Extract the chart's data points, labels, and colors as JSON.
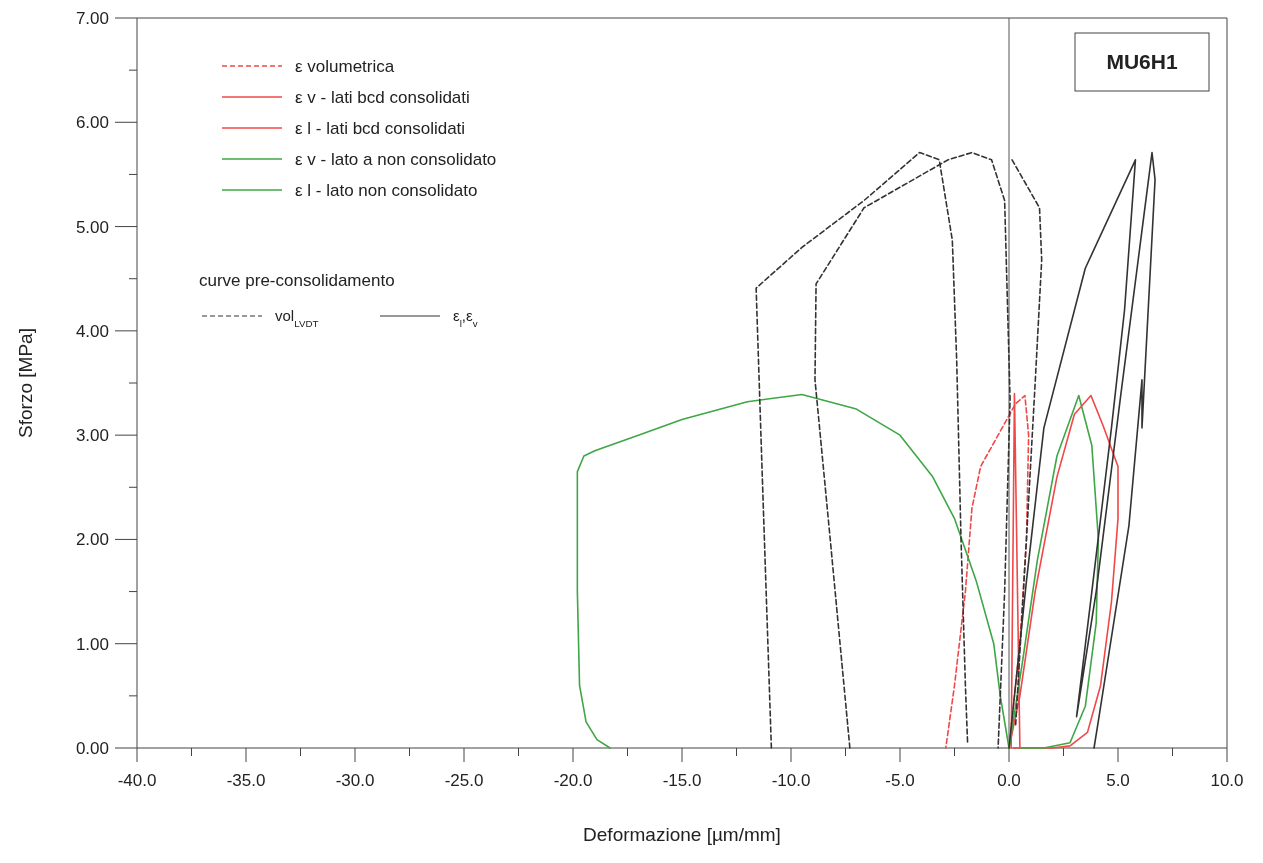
{
  "chart_data": {
    "type": "line",
    "xlabel": "Deformazione [µm/mm]",
    "ylabel": "Sforzo [MPa]",
    "legend_title": "curve pre-consolidamento",
    "annotations": [
      "MU6H1"
    ],
    "xlim": [
      -40,
      10
    ],
    "ylim": [
      0,
      7
    ],
    "xticks": [
      {
        "value": -40,
        "label": "-40.0"
      },
      {
        "value": -37.5,
        "label": null
      },
      {
        "value": -35,
        "label": "-35.0"
      },
      {
        "value": -32.5,
        "label": null
      },
      {
        "value": -30,
        "label": "-30.0"
      },
      {
        "value": -27.5,
        "label": null
      },
      {
        "value": -25,
        "label": "-25.0"
      },
      {
        "value": -22.5,
        "label": null
      },
      {
        "value": -20,
        "label": "-20.0"
      },
      {
        "value": -17.5,
        "label": null
      },
      {
        "value": -15,
        "label": "-15.0"
      },
      {
        "value": -12.5,
        "label": null
      },
      {
        "value": -10,
        "label": "-10.0"
      },
      {
        "value": -7.5,
        "label": null
      },
      {
        "value": -5,
        "label": "-5.0"
      },
      {
        "value": -2.5,
        "label": null
      },
      {
        "value": 0,
        "label": "0.0"
      },
      {
        "value": 2.5,
        "label": null
      },
      {
        "value": 5,
        "label": "5.0"
      },
      {
        "value": 7.5,
        "label": null
      },
      {
        "value": 10,
        "label": "10.0"
      }
    ],
    "yticks": [
      {
        "value": 0,
        "label": "0.00"
      },
      {
        "value": 0.5,
        "label": null
      },
      {
        "value": 1,
        "label": "1.00"
      },
      {
        "value": 1.5,
        "label": null
      },
      {
        "value": 2,
        "label": "2.00"
      },
      {
        "value": 2.5,
        "label": null
      },
      {
        "value": 3,
        "label": "3.00"
      },
      {
        "value": 3.5,
        "label": null
      },
      {
        "value": 4,
        "label": "4.00"
      },
      {
        "value": 4.5,
        "label": null
      },
      {
        "value": 5,
        "label": "5.00"
      },
      {
        "value": 5.5,
        "label": null
      },
      {
        "value": 6,
        "label": "6.00"
      },
      {
        "value": 6.5,
        "label": null
      },
      {
        "value": 7,
        "label": "7.00"
      }
    ],
    "grid": false,
    "legend": "top left",
    "ref_lines": [
      {
        "axis": "x",
        "value": 0,
        "color": "#555555"
      }
    ],
    "series": [
      {
        "name": "ε volumetrica",
        "color": "#f04848",
        "line_style": "dashed",
        "x": [
          0,
          0.5,
          0.8,
          0.9,
          0.73,
          0.3,
          -0.5,
          -1.3,
          -1.7,
          -2.0,
          -2.5,
          -2.9
        ],
        "values": [
          0,
          1.0,
          2.0,
          3.0,
          3.38,
          3.3,
          3.0,
          2.7,
          2.3,
          1.5,
          0.6,
          0
        ]
      },
      {
        "name": "ε v - lati bcd consolidati",
        "color": "#f04848",
        "line_style": "solid",
        "x": [
          0,
          0.5,
          1.2,
          2.2,
          3.0,
          3.76,
          4.3,
          5.0,
          5.0,
          4.7,
          4.2,
          3.6,
          2.8,
          2.0,
          1.0,
          0.2
        ],
        "values": [
          0,
          0.5,
          1.5,
          2.6,
          3.2,
          3.38,
          3.1,
          2.7,
          2.2,
          1.4,
          0.6,
          0.15,
          0.02,
          0,
          0,
          0
        ]
      },
      {
        "name": "ε l - lati bcd consolidati",
        "color": "#f04848",
        "line_style": "solid",
        "x": [
          0.1,
          0.25,
          0.5
        ],
        "values": [
          0,
          3.4,
          0
        ]
      },
      {
        "name": "ε v - lato a  non consolidato",
        "color": "#3fa646",
        "line_style": "solid",
        "x": [
          0,
          0.6,
          1.3,
          2.2,
          3.2,
          3.8,
          4.1,
          4.0,
          3.5,
          2.8,
          1.6,
          0.5
        ],
        "values": [
          0,
          0.8,
          1.8,
          2.8,
          3.38,
          2.9,
          2.0,
          1.2,
          0.4,
          0.05,
          0,
          0
        ]
      },
      {
        "name": "ε l - lato non consolidato",
        "color": "#3fa646",
        "line_style": "solid",
        "x": [
          0,
          -0.4,
          -0.7,
          -1.5,
          -2.5,
          -3.5,
          -5,
          -7,
          -9.5,
          -12,
          -15,
          -17,
          -19,
          -19.5,
          -19.8,
          -19.8,
          -19.7,
          -19.4,
          -18.9,
          -18.3
        ],
        "values": [
          0,
          0.5,
          1.0,
          1.6,
          2.2,
          2.6,
          3.0,
          3.25,
          3.39,
          3.32,
          3.15,
          3.0,
          2.85,
          2.8,
          2.65,
          1.5,
          0.6,
          0.25,
          0.08,
          0
        ]
      },
      {
        "name": "vol$_{LVDT}$",
        "color": "#333333",
        "line_style": "dashed",
        "x": [
          -10.9,
          -11.3,
          -11.6,
          -9.5,
          -6.65,
          -4.1,
          -3.2,
          -2.6,
          -2.4,
          -2.2,
          -2.0,
          -1.9,
          null,
          -7.3,
          -8.2,
          -8.9,
          -8.85,
          -6.65,
          -2.8,
          -1.7,
          -0.8,
          -0.2,
          0.05,
          -0.2,
          -0.5,
          null,
          0.14,
          1.4,
          1.5,
          1.2,
          0.8,
          0.3
        ],
        "values": [
          0,
          2.5,
          4.41,
          4.8,
          5.25,
          5.71,
          5.64,
          4.87,
          3.72,
          2.0,
          0.6,
          0.05,
          null,
          0,
          2.0,
          3.53,
          4.45,
          5.18,
          5.64,
          5.71,
          5.64,
          5.25,
          3.34,
          1.5,
          0,
          null,
          5.64,
          5.18,
          4.68,
          3.5,
          2.0,
          0.2
        ]
      },
      {
        "name": "ε$_{l}$,ε$_{v}$",
        "color": "#333333",
        "line_style": "solid",
        "x": [
          0,
          0.8,
          1.6,
          3.5,
          5.8,
          5.3,
          4.7,
          3.8,
          3.1,
          null,
          3.1,
          4.0,
          5.1,
          6.0,
          6.56,
          6.7,
          6.1,
          6.1,
          5.5,
          4.1,
          3.9
        ],
        "values": [
          0,
          1.6,
          3.07,
          4.6,
          5.64,
          4.2,
          3.07,
          1.5,
          0.3,
          null,
          0.3,
          1.5,
          3.34,
          4.8,
          5.71,
          5.45,
          3.07,
          3.53,
          2.13,
          0.26,
          0
        ]
      }
    ]
  }
}
